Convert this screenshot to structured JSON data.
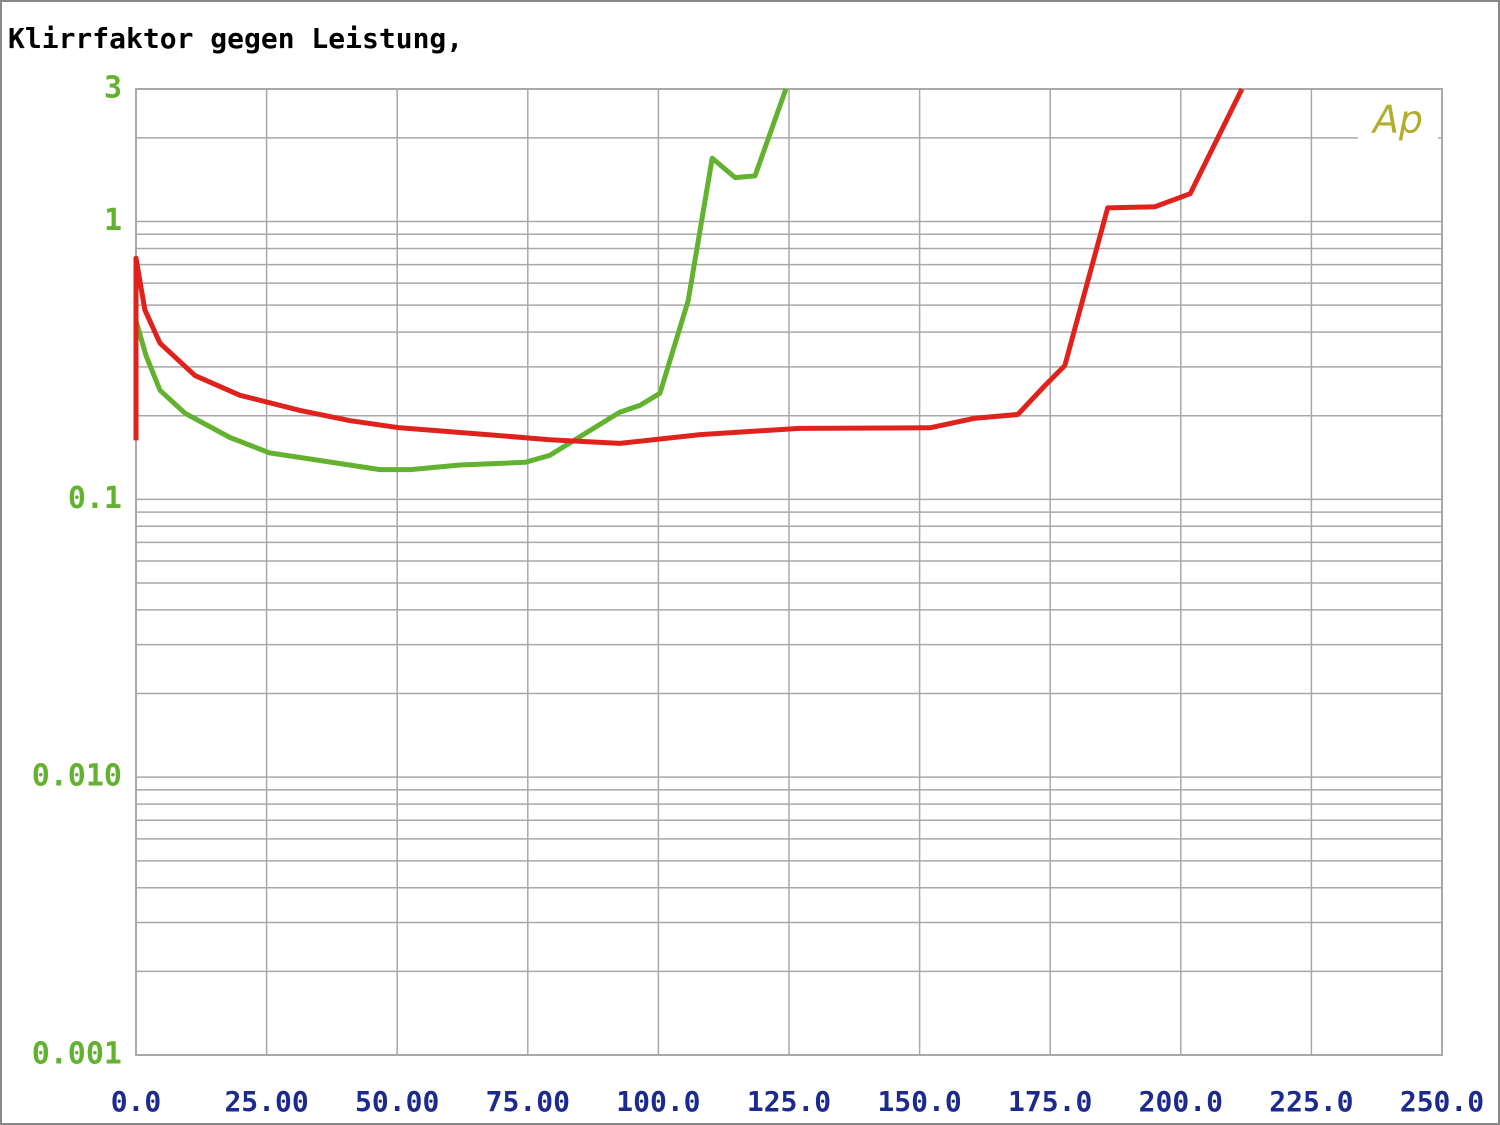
{
  "chart_data": {
    "type": "line",
    "title": "Klirrfaktor gegen Leistung,",
    "annotation": "Ap",
    "annotation_color": "#b3ad2e",
    "log_y": true,
    "grid": true,
    "xlim": [
      0,
      250
    ],
    "xticks": [
      {
        "value": 0,
        "label": "0.0"
      },
      {
        "value": 25,
        "label": "25.00"
      },
      {
        "value": 50,
        "label": "50.00"
      },
      {
        "value": 75,
        "label": "75.00"
      },
      {
        "value": 100,
        "label": "100.0"
      },
      {
        "value": 125,
        "label": "125.0"
      },
      {
        "value": 150,
        "label": "150.0"
      },
      {
        "value": 175,
        "label": "175.0"
      },
      {
        "value": 200,
        "label": "200.0"
      },
      {
        "value": 225,
        "label": "225.0"
      },
      {
        "value": 250,
        "label": "250.0"
      }
    ],
    "ylim": [
      0.001,
      3
    ],
    "yticks": [
      0.001,
      {
        "value": 0.01,
        "label": "0.010"
      },
      0.1,
      1,
      3
    ],
    "series": [
      {
        "color": "#62b22f",
        "x": [
          0,
          1.9,
          4.6,
          9.4,
          18,
          25.6,
          35.2,
          46.7,
          52.5,
          62,
          74.5,
          79.2,
          86.9,
          92.6,
          96.5,
          100.3,
          105.7,
          110.3,
          114.7,
          118.5,
          124.4
        ],
        "values": [
          0.44,
          0.33,
          0.247,
          0.204,
          0.167,
          0.147,
          0.138,
          0.128,
          0.128,
          0.133,
          0.136,
          0.144,
          0.177,
          0.206,
          0.218,
          0.241,
          0.52,
          1.69,
          1.44,
          1.46,
          3.0
        ]
      },
      {
        "color": "#e0221c",
        "x": [
          0,
          0,
          1.7,
          4.6,
          11.3,
          19.9,
          31.4,
          41,
          50.5,
          63.9,
          79.2,
          92.6,
          108,
          127,
          152,
          160.6,
          168.8,
          174,
          177.8,
          186,
          195,
          201.8,
          211.7
        ],
        "values": [
          0.163,
          0.738,
          0.48,
          0.365,
          0.279,
          0.237,
          0.209,
          0.192,
          0.181,
          0.173,
          0.164,
          0.159,
          0.171,
          0.18,
          0.181,
          0.196,
          0.202,
          0.257,
          0.303,
          1.12,
          1.13,
          1.26,
          3.0
        ]
      }
    ]
  }
}
